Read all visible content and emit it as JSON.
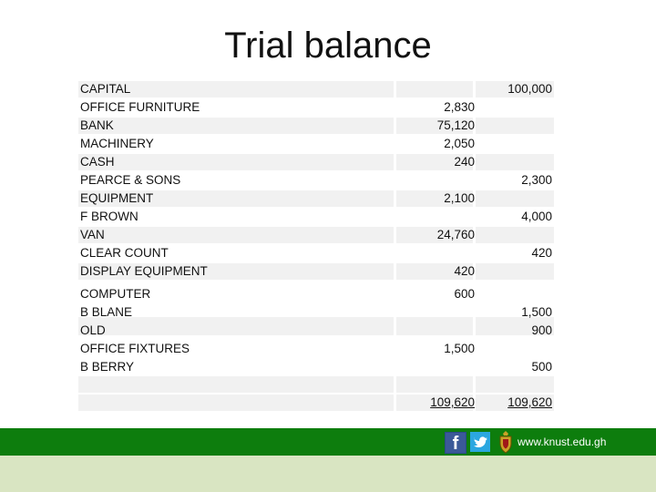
{
  "title": "Trial balance",
  "rows": [
    {
      "account": "CAPITAL",
      "debit": "",
      "credit": "100,000"
    },
    {
      "account": "OFFICE FURNITURE",
      "debit": "2,830",
      "credit": ""
    },
    {
      "account": "BANK",
      "debit": "75,120",
      "credit": ""
    },
    {
      "account": "MACHINERY",
      "debit": "2,050",
      "credit": ""
    },
    {
      "account": "CASH",
      "debit": "240",
      "credit": ""
    },
    {
      "account": "PEARCE & SONS",
      "debit": "",
      "credit": "2,300"
    },
    {
      "account": "EQUIPMENT",
      "debit": "2,100",
      "credit": ""
    },
    {
      "account": "F BROWN",
      "debit": "",
      "credit": "4,000"
    },
    {
      "account": "VAN",
      "debit": "24,760",
      "credit": ""
    },
    {
      "account": "CLEAR COUNT",
      "debit": "",
      "credit": "420"
    },
    {
      "account": "DISPLAY EQUIPMENT",
      "debit": "420",
      "credit": ""
    },
    {
      "account": "COMPUTER",
      "debit": "600",
      "credit": ""
    },
    {
      "account": "B BLANE",
      "debit": "",
      "credit": "1,500"
    },
    {
      "account": "OLD",
      "debit": "",
      "credit": "900"
    },
    {
      "account": "OFFICE FIXTURES",
      "debit": "1,500",
      "credit": ""
    },
    {
      "account": "B BERRY",
      "debit": "",
      "credit": "500"
    }
  ],
  "totals": {
    "debit": "109,620",
    "credit": "109,620"
  },
  "footer": {
    "url": "www.knust.edu.gh",
    "facebook_glyph": "f",
    "icons": [
      "facebook-icon",
      "twitter-icon",
      "crest-icon"
    ],
    "colors": {
      "bar": "#0d7d0d",
      "strip": "#d9e5c2"
    }
  }
}
